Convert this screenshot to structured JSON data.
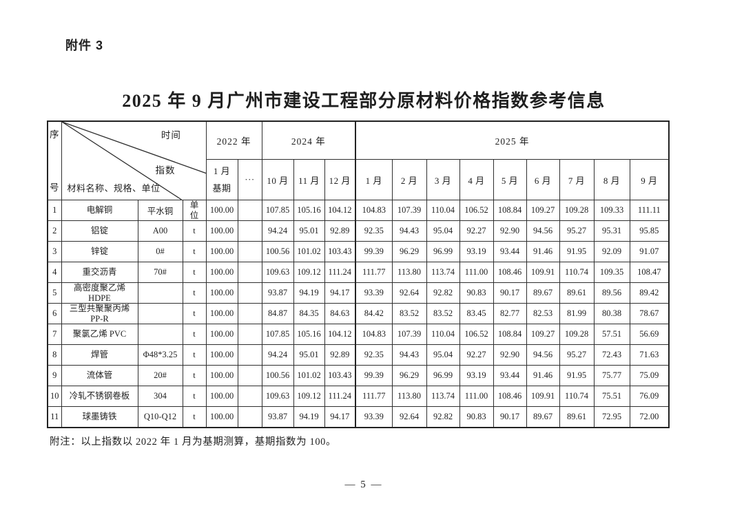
{
  "page": {
    "attachment_label": "附件 3",
    "title": "2025 年 9 月广州市建设工程部分原材料价格指数参考信息",
    "footnote": "附注：以上指数以 2022 年 1 月为基期测算，基期指数为 100。",
    "page_number": "— 5 —",
    "background": "#ffffff",
    "text_color": "#1f1f1f",
    "border_color": "#2e2e2e"
  },
  "table": {
    "corner": {
      "seq_top": "序",
      "seq_bottom": "号",
      "time_label": "时间",
      "index_label": "指数",
      "material_label": "材料名称、规格、单位"
    },
    "year_groups": [
      {
        "label": "2022 年",
        "span": 2
      },
      {
        "label": "2024 年",
        "span": 3
      },
      {
        "label": "2025 年",
        "span": 9
      }
    ],
    "subheaders": {
      "base_period_line1": "1 月",
      "base_period_line2": "基期",
      "ellipsis": "···",
      "months": [
        "10 月",
        "11 月",
        "12 月",
        "1 月",
        "2 月",
        "3 月",
        "4 月",
        "5 月",
        "6 月",
        "7 月",
        "8 月",
        "9 月"
      ]
    },
    "rows": [
      {
        "no": "1",
        "name": [
          "电解铜"
        ],
        "spec": "平水铜",
        "unit": [
          "单",
          "位"
        ],
        "base": "100.00",
        "values": [
          "107.85",
          "105.16",
          "104.12",
          "104.83",
          "107.39",
          "110.04",
          "106.52",
          "108.84",
          "109.27",
          "109.28",
          "109.33",
          "111.11"
        ]
      },
      {
        "no": "2",
        "name": [
          "铝锭"
        ],
        "spec": "A00",
        "unit": [
          "t"
        ],
        "base": "100.00",
        "values": [
          "94.24",
          "95.01",
          "92.89",
          "92.35",
          "94.43",
          "95.04",
          "92.27",
          "92.90",
          "94.56",
          "95.27",
          "95.31",
          "95.85"
        ]
      },
      {
        "no": "3",
        "name": [
          "锌锭"
        ],
        "spec": "0#",
        "unit": [
          "t"
        ],
        "base": "100.00",
        "values": [
          "100.56",
          "101.02",
          "103.43",
          "99.39",
          "96.29",
          "96.99",
          "93.19",
          "93.44",
          "91.46",
          "91.95",
          "92.09",
          "91.07"
        ]
      },
      {
        "no": "4",
        "name": [
          "重交沥青"
        ],
        "spec": "70#",
        "unit": [
          "t"
        ],
        "base": "100.00",
        "values": [
          "109.63",
          "109.12",
          "111.24",
          "111.77",
          "113.80",
          "113.74",
          "111.00",
          "108.46",
          "109.91",
          "110.74",
          "109.35",
          "108.47"
        ]
      },
      {
        "no": "5",
        "name": [
          "高密度聚乙烯",
          "HDPE"
        ],
        "spec": "",
        "unit": [
          "t"
        ],
        "base": "100.00",
        "values": [
          "93.87",
          "94.19",
          "94.17",
          "93.39",
          "92.64",
          "92.82",
          "90.83",
          "90.17",
          "89.67",
          "89.61",
          "89.56",
          "89.42"
        ]
      },
      {
        "no": "6",
        "name": [
          "三型共聚聚丙烯",
          "PP-R"
        ],
        "spec": "",
        "unit": [
          "t"
        ],
        "base": "100.00",
        "values": [
          "84.87",
          "84.35",
          "84.63",
          "84.42",
          "83.52",
          "83.52",
          "83.45",
          "82.77",
          "82.53",
          "81.99",
          "80.38",
          "78.67"
        ]
      },
      {
        "no": "7",
        "name": [
          "聚氯乙烯 PVC"
        ],
        "spec": "",
        "unit": [
          "t"
        ],
        "base": "100.00",
        "values": [
          "107.85",
          "105.16",
          "104.12",
          "104.83",
          "107.39",
          "110.04",
          "106.52",
          "108.84",
          "109.27",
          "109.28",
          "57.51",
          "56.69"
        ]
      },
      {
        "no": "8",
        "name": [
          "焊管"
        ],
        "spec": "Φ48*3.25",
        "unit": [
          "t"
        ],
        "base": "100.00",
        "values": [
          "94.24",
          "95.01",
          "92.89",
          "92.35",
          "94.43",
          "95.04",
          "92.27",
          "92.90",
          "94.56",
          "95.27",
          "72.43",
          "71.63"
        ]
      },
      {
        "no": "9",
        "name": [
          "流体管"
        ],
        "spec": "20#",
        "unit": [
          "t"
        ],
        "base": "100.00",
        "values": [
          "100.56",
          "101.02",
          "103.43",
          "99.39",
          "96.29",
          "96.99",
          "93.19",
          "93.44",
          "91.46",
          "91.95",
          "75.77",
          "75.09"
        ]
      },
      {
        "no": "10",
        "name": [
          "冷轧不锈钢卷板"
        ],
        "spec": "304",
        "unit": [
          "t"
        ],
        "base": "100.00",
        "values": [
          "109.63",
          "109.12",
          "111.24",
          "111.77",
          "113.80",
          "113.74",
          "111.00",
          "108.46",
          "109.91",
          "110.74",
          "75.51",
          "76.09"
        ]
      },
      {
        "no": "11",
        "name": [
          "球墨铸铁"
        ],
        "spec": "Q10-Q12",
        "unit": [
          "t"
        ],
        "base": "100.00",
        "values": [
          "93.87",
          "94.19",
          "94.17",
          "93.39",
          "92.64",
          "92.82",
          "90.83",
          "90.17",
          "89.67",
          "89.61",
          "72.95",
          "72.00"
        ]
      }
    ]
  }
}
